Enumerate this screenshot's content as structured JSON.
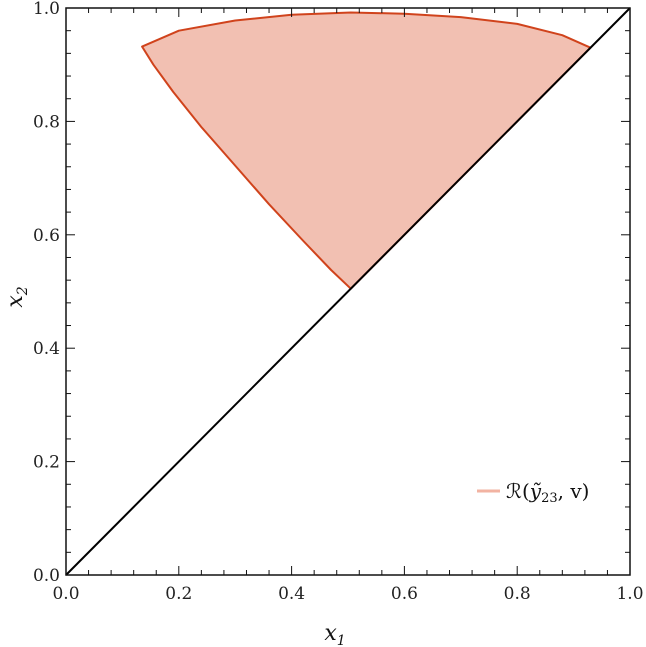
{
  "chart_data": {
    "type": "area",
    "xlabel": {
      "base": "x",
      "sub": "1"
    },
    "ylabel": {
      "base": "x",
      "sub": "2"
    },
    "xlim": [
      0,
      1
    ],
    "ylim": [
      0,
      1
    ],
    "x_ticks": [
      "0.0",
      "0.2",
      "0.4",
      "0.6",
      "0.8",
      "1.0"
    ],
    "y_ticks": [
      "0.0",
      "0.2",
      "0.4",
      "0.6",
      "0.8",
      "1.0"
    ],
    "grid": false,
    "legend_position": "bottom-right",
    "diagonal": {
      "x": [
        0,
        1
      ],
      "y": [
        0,
        1
      ]
    },
    "series": [
      {
        "name": "ℛ(ỹ₂₃, v)",
        "legend_label": {
          "prefix": "ℛ(",
          "var": "ỹ",
          "sub": "23",
          "suffix": ", v)"
        },
        "type": "area",
        "boundary": [
          {
            "x": 0.135,
            "y": 0.932
          },
          {
            "x": 0.155,
            "y": 0.9
          },
          {
            "x": 0.19,
            "y": 0.852
          },
          {
            "x": 0.24,
            "y": 0.79
          },
          {
            "x": 0.3,
            "y": 0.722
          },
          {
            "x": 0.36,
            "y": 0.654
          },
          {
            "x": 0.42,
            "y": 0.59
          },
          {
            "x": 0.47,
            "y": 0.538
          },
          {
            "x": 0.505,
            "y": 0.505
          },
          {
            "x": 0.93,
            "y": 0.93
          },
          {
            "x": 0.88,
            "y": 0.952
          },
          {
            "x": 0.8,
            "y": 0.972
          },
          {
            "x": 0.7,
            "y": 0.984
          },
          {
            "x": 0.6,
            "y": 0.99
          },
          {
            "x": 0.505,
            "y": 0.992
          },
          {
            "x": 0.4,
            "y": 0.988
          },
          {
            "x": 0.3,
            "y": 0.978
          },
          {
            "x": 0.2,
            "y": 0.96
          },
          {
            "x": 0.135,
            "y": 0.932
          }
        ]
      }
    ]
  },
  "colors": {
    "fill": "#f2c0b2",
    "edge": "#d0431c",
    "legend_swatch": "#f2b3a2",
    "axis": "#111111",
    "diagonal": "#000000"
  }
}
